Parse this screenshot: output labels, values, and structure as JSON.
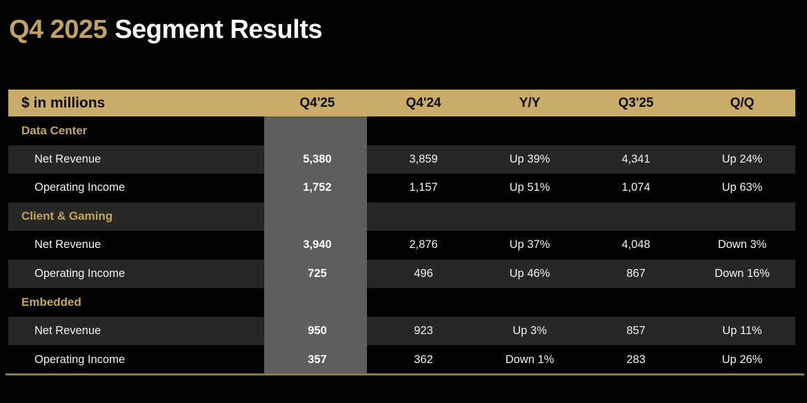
{
  "title": {
    "highlight": "Q4 2025",
    "rest": "Segment Results"
  },
  "colors": {
    "gold_header_bg": "#c9ac68",
    "title_gold": "#c3a25d",
    "segment_label_gold": "#c6a557",
    "highlight_band_gray": "#5e5e5e",
    "shaded_row": "#272727",
    "bottom_line_gold": "#8d7b45",
    "background": "#020202",
    "text_white": "#f2f2f2"
  },
  "table": {
    "unit_label": "$ in millions",
    "columns": [
      "Q4'25",
      "Q4'24",
      "Y/Y",
      "Q3'25",
      "Q/Q"
    ],
    "rows": [
      {
        "type": "segment",
        "label": "Data Center"
      },
      {
        "type": "data",
        "label": "Net Revenue",
        "values": [
          "5,380",
          "3,859",
          "Up 39%",
          "4,341",
          "Up 24%"
        ]
      },
      {
        "type": "data",
        "label": "Operating Income",
        "values": [
          "1,752",
          "1,157",
          "Up 51%",
          "1,074",
          "Up 63%"
        ]
      },
      {
        "type": "segment",
        "label": "Client & Gaming"
      },
      {
        "type": "data",
        "label": "Net Revenue",
        "values": [
          "3,940",
          "2,876",
          "Up 37%",
          "4,048",
          "Down 3%"
        ]
      },
      {
        "type": "data",
        "label": "Operating Income",
        "values": [
          "725",
          "496",
          "Up 46%",
          "867",
          "Down 16%"
        ]
      },
      {
        "type": "segment",
        "label": "Embedded"
      },
      {
        "type": "data",
        "label": "Net Revenue",
        "values": [
          "950",
          "923",
          "Up 3%",
          "857",
          "Up 11%"
        ]
      },
      {
        "type": "data",
        "label": "Operating Income",
        "values": [
          "357",
          "362",
          "Down 1%",
          "283",
          "Up 26%"
        ]
      }
    ]
  },
  "chart_data": {
    "type": "table",
    "title": "Q4 2025 Segment Results",
    "unit": "$ in millions",
    "columns": [
      "Q4'25",
      "Q4'24",
      "Y/Y",
      "Q3'25",
      "Q/Q"
    ],
    "highlighted_column": "Q4'25",
    "segments": [
      {
        "name": "Data Center",
        "net_revenue": {
          "q4_25": 5380,
          "q4_24": 3859,
          "yoy": "Up 39%",
          "q3_25": 4341,
          "qoq": "Up 24%"
        },
        "operating_income": {
          "q4_25": 1752,
          "q4_24": 1157,
          "yoy": "Up 51%",
          "q3_25": 1074,
          "qoq": "Up 63%"
        }
      },
      {
        "name": "Client & Gaming",
        "net_revenue": {
          "q4_25": 3940,
          "q4_24": 2876,
          "yoy": "Up 37%",
          "q3_25": 4048,
          "qoq": "Down 3%"
        },
        "operating_income": {
          "q4_25": 725,
          "q4_24": 496,
          "yoy": "Up 46%",
          "q3_25": 867,
          "qoq": "Down 16%"
        }
      },
      {
        "name": "Embedded",
        "net_revenue": {
          "q4_25": 950,
          "q4_24": 923,
          "yoy": "Up 3%",
          "q3_25": 857,
          "qoq": "Up 11%"
        },
        "operating_income": {
          "q4_25": 357,
          "q4_24": 362,
          "yoy": "Down 1%",
          "q3_25": 283,
          "qoq": "Up 26%"
        }
      }
    ]
  }
}
